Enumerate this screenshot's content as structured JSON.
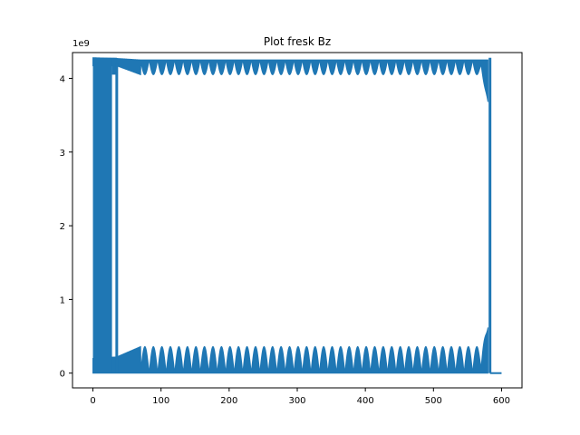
{
  "chart_data": {
    "type": "line",
    "title": "Plot fresk Bz",
    "xlabel": "",
    "ylabel": "",
    "y_offset_label": "1e9",
    "xlim": [
      -30,
      630
    ],
    "ylim": [
      -0.2,
      4.35
    ],
    "x_ticks": [
      0,
      100,
      200,
      300,
      400,
      500,
      600
    ],
    "y_ticks": [
      0,
      1,
      2,
      3,
      4
    ],
    "x_tick_labels": [
      "0",
      "100",
      "200",
      "300",
      "400",
      "500",
      "600"
    ],
    "y_tick_labels": [
      "0",
      "1",
      "2",
      "3",
      "4"
    ],
    "grid": false,
    "series": [
      {
        "color": "#1f77b4",
        "upper_band": {
          "x": [
            0,
            35,
            70,
            580
          ],
          "y_top": [
            4.28,
            4.27,
            4.25,
            4.25
          ],
          "y_bottom": [
            4.17,
            4.17,
            4.05,
            4.05
          ],
          "end_dip": 3.68
        },
        "lower_band": {
          "x": [
            0,
            35,
            70,
            580
          ],
          "y_top": [
            0.2,
            0.22,
            0.36,
            0.36
          ],
          "y_bottom": [
            0.0,
            0.0,
            0.0,
            0.0
          ],
          "end_peak": 0.62
        },
        "left_block": {
          "x": [
            0,
            30
          ],
          "y": [
            0.0,
            4.28
          ],
          "gap_x": [
            28,
            35
          ]
        },
        "vertical_edges": [
          {
            "x": 35,
            "y": [
              0.0,
              4.2
            ]
          },
          {
            "x": 583,
            "y": [
              0.0,
              4.28
            ]
          }
        ],
        "tail": {
          "x": [
            583,
            600
          ],
          "y": 0.0
        },
        "oscillation_period": 12.5
      }
    ]
  }
}
